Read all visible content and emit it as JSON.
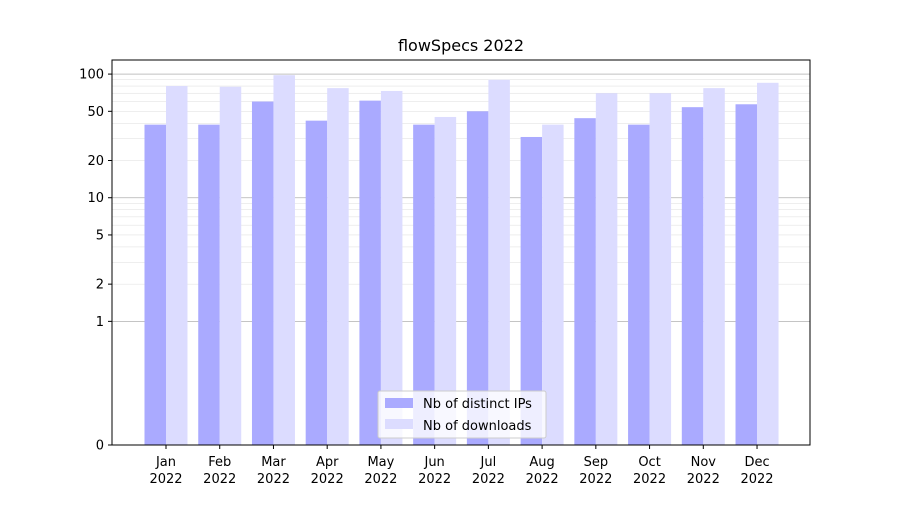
{
  "chart_data": {
    "type": "bar",
    "title": "flowSpecs 2022",
    "xlabel": "",
    "ylabel": "",
    "yscale": "symlog",
    "categories": [
      [
        "Jan",
        "2022"
      ],
      [
        "Feb",
        "2022"
      ],
      [
        "Mar",
        "2022"
      ],
      [
        "Apr",
        "2022"
      ],
      [
        "May",
        "2022"
      ],
      [
        "Jun",
        "2022"
      ],
      [
        "Jul",
        "2022"
      ],
      [
        "Aug",
        "2022"
      ],
      [
        "Sep",
        "2022"
      ],
      [
        "Oct",
        "2022"
      ],
      [
        "Nov",
        "2022"
      ],
      [
        "Dec",
        "2022"
      ]
    ],
    "series": [
      {
        "name": "Nb of distinct IPs",
        "color": "#aaaaff",
        "values": [
          39,
          39,
          60,
          42,
          61,
          39,
          50,
          31,
          44,
          39,
          54,
          57
        ]
      },
      {
        "name": "Nb of downloads",
        "color": "#dcdcff",
        "values": [
          80,
          79,
          98,
          77,
          73,
          45,
          90,
          39,
          70,
          70,
          77,
          85
        ]
      }
    ],
    "yticks": [
      0,
      1,
      2,
      5,
      10,
      20,
      50,
      100
    ],
    "ylim": [
      0,
      130
    ],
    "grid": true,
    "legend_position": "bottom-center"
  }
}
